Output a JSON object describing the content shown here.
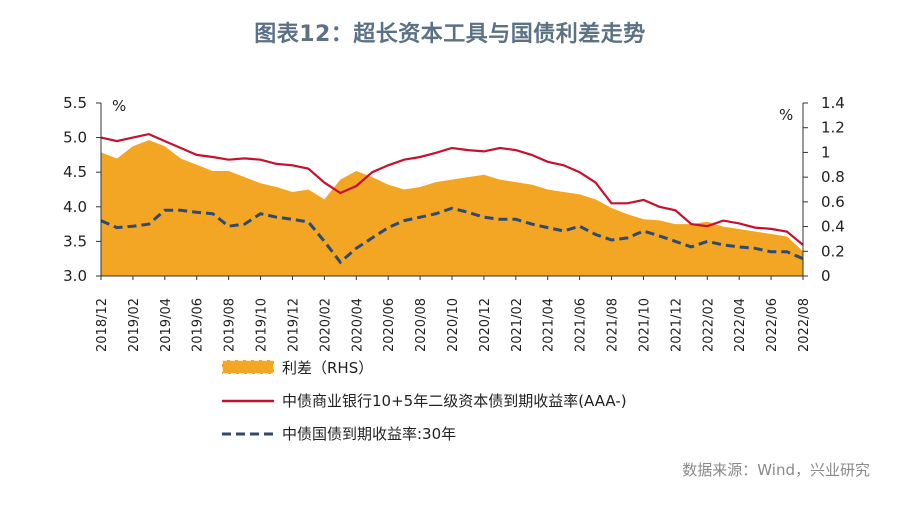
{
  "title": "图表12：超长资本工具与国债利差走势",
  "source": "数据来源：Wind，兴业研究",
  "chart_data": {
    "type": "line",
    "left_axis": {
      "unit": "%",
      "ylim": [
        3.0,
        5.5
      ],
      "ticks": [
        "3.0",
        "3.5",
        "4.0",
        "4.5",
        "5.0",
        "5.5"
      ]
    },
    "right_axis": {
      "unit": "%",
      "ylim": [
        0,
        1.4
      ],
      "ticks": [
        "0",
        "0.2",
        "0.4",
        "0.6",
        "0.8",
        "1",
        "1.2",
        "1.4"
      ]
    },
    "x_ticks": [
      "2018/12",
      "2019/02",
      "2019/04",
      "2019/06",
      "2019/08",
      "2019/10",
      "2019/12",
      "2020/02",
      "2020/04",
      "2020/06",
      "2020/08",
      "2020/10",
      "2020/12",
      "2021/02",
      "2021/04",
      "2021/06",
      "2021/08",
      "2021/10",
      "2021/12",
      "2022/02",
      "2022/04",
      "2022/06",
      "2022/08"
    ],
    "x": [
      "2018/12",
      "2019/01",
      "2019/02",
      "2019/03",
      "2019/04",
      "2019/05",
      "2019/06",
      "2019/07",
      "2019/08",
      "2019/09",
      "2019/10",
      "2019/11",
      "2019/12",
      "2020/01",
      "2020/02",
      "2020/03",
      "2020/04",
      "2020/05",
      "2020/06",
      "2020/07",
      "2020/08",
      "2020/09",
      "2020/10",
      "2020/11",
      "2020/12",
      "2021/01",
      "2021/02",
      "2021/03",
      "2021/04",
      "2021/05",
      "2021/06",
      "2021/07",
      "2021/08",
      "2021/09",
      "2021/10",
      "2021/11",
      "2021/12",
      "2022/01",
      "2022/02",
      "2022/03",
      "2022/04",
      "2022/05",
      "2022/06",
      "2022/07",
      "2022/08"
    ],
    "series": [
      {
        "name": "利差（RHS）",
        "axis": "right",
        "style": "area",
        "color": "#f2a623",
        "values": [
          1.0,
          0.95,
          1.05,
          1.1,
          1.05,
          0.95,
          0.9,
          0.85,
          0.85,
          0.8,
          0.75,
          0.72,
          0.68,
          0.7,
          0.62,
          0.78,
          0.85,
          0.8,
          0.74,
          0.7,
          0.72,
          0.76,
          0.78,
          0.8,
          0.82,
          0.78,
          0.76,
          0.74,
          0.7,
          0.68,
          0.66,
          0.62,
          0.55,
          0.5,
          0.46,
          0.45,
          0.42,
          0.42,
          0.44,
          0.4,
          0.38,
          0.36,
          0.34,
          0.32,
          0.2
        ]
      },
      {
        "name": "中债商业银行10+5年二级资本债到期收益率(AAA-)",
        "axis": "left",
        "style": "solid",
        "color": "#c8102e",
        "values": [
          5.0,
          4.95,
          5.0,
          5.05,
          4.95,
          4.85,
          4.75,
          4.72,
          4.68,
          4.7,
          4.68,
          4.62,
          4.6,
          4.55,
          4.35,
          4.2,
          4.3,
          4.5,
          4.6,
          4.68,
          4.72,
          4.78,
          4.85,
          4.82,
          4.8,
          4.85,
          4.82,
          4.75,
          4.65,
          4.6,
          4.5,
          4.35,
          4.05,
          4.05,
          4.1,
          4.0,
          3.95,
          3.75,
          3.72,
          3.8,
          3.76,
          3.7,
          3.68,
          3.64,
          3.45
        ]
      },
      {
        "name": "中债国债到期收益率:30年",
        "axis": "left",
        "style": "dashed",
        "color": "#2f4a6e",
        "values": [
          3.8,
          3.7,
          3.72,
          3.75,
          3.95,
          3.95,
          3.92,
          3.9,
          3.72,
          3.75,
          3.9,
          3.85,
          3.82,
          3.78,
          3.5,
          3.2,
          3.4,
          3.55,
          3.7,
          3.8,
          3.85,
          3.9,
          3.98,
          3.92,
          3.85,
          3.82,
          3.82,
          3.75,
          3.7,
          3.65,
          3.72,
          3.6,
          3.52,
          3.55,
          3.65,
          3.58,
          3.5,
          3.42,
          3.5,
          3.45,
          3.42,
          3.4,
          3.35,
          3.35,
          3.25
        ]
      }
    ],
    "grid": false,
    "legend": "bottom"
  }
}
